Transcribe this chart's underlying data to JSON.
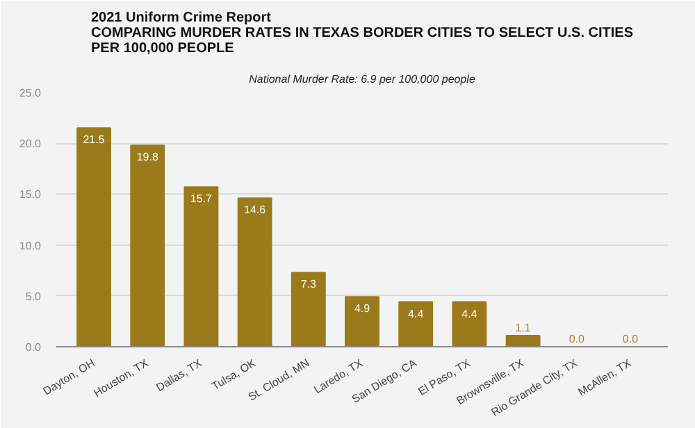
{
  "chart_data": {
    "type": "bar",
    "title": "2021 Uniform Crime Report\nCOMPARING MURDER RATES IN TEXAS BORDER CITIES TO SELECT U.S. CITIES\nPER 100,000 PEOPLE",
    "subtitle": "National Murder Rate: 6.9 per 100,000 people",
    "categories": [
      "Dayton, OH",
      "Houston, TX",
      "Dallas, TX",
      "Tulsa, OK",
      "St. Cloud, MN",
      "Laredo, TX",
      "San Diego, CA",
      "El Paso, TX",
      "Brownsville, TX",
      "Rio Grande City, TX",
      "McAllen, TX"
    ],
    "values": [
      21.5,
      19.8,
      15.7,
      14.6,
      7.3,
      4.9,
      4.4,
      4.4,
      1.1,
      0.0,
      0.0
    ],
    "color": "#9a7a1a",
    "ylim": [
      0,
      25
    ],
    "yticks": [
      {
        "value": 0,
        "label": "0.0"
      },
      {
        "value": 5,
        "label": "5.0"
      },
      {
        "value": 10,
        "label": "10.0"
      },
      {
        "value": 15,
        "label": "15.0"
      },
      {
        "value": 20,
        "label": "20.0"
      },
      {
        "value": 25,
        "label": "25.0"
      }
    ],
    "grid": "y",
    "value_labels": [
      "21.5",
      "19.8",
      "15.7",
      "14.6",
      "7.3",
      "4.9",
      "4.4",
      "4.4",
      "1.1",
      "0.0",
      "0.0"
    ]
  }
}
